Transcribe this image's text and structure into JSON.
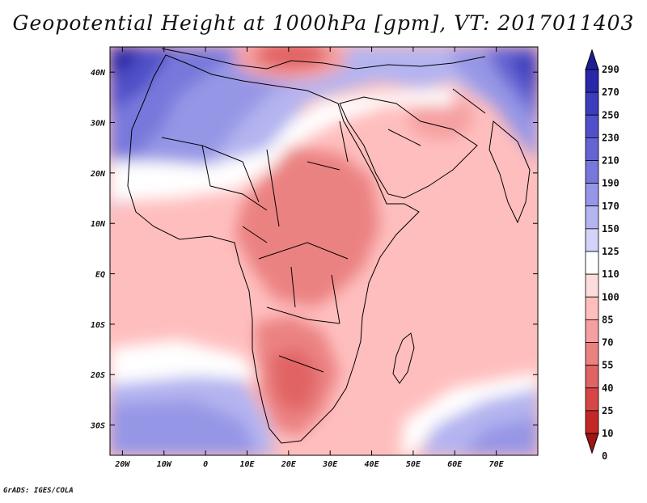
{
  "title": "Geopotential Height at 1000hPa [gpm], VT: 2017011403",
  "footer": "GrADS: IGES/COLA",
  "map": {
    "lon_range": [
      -23,
      80
    ],
    "lat_range": [
      -36,
      45
    ],
    "lat_ticks": [
      {
        "value": 40,
        "label": "40N"
      },
      {
        "value": 30,
        "label": "30N"
      },
      {
        "value": 20,
        "label": "20N"
      },
      {
        "value": 10,
        "label": "10N"
      },
      {
        "value": 0,
        "label": "EQ"
      },
      {
        "value": -10,
        "label": "10S"
      },
      {
        "value": -20,
        "label": "20S"
      },
      {
        "value": -30,
        "label": "30S"
      }
    ],
    "lon_ticks": [
      {
        "value": -20,
        "label": "20W"
      },
      {
        "value": -10,
        "label": "10W"
      },
      {
        "value": 0,
        "label": "0"
      },
      {
        "value": 10,
        "label": "10E"
      },
      {
        "value": 20,
        "label": "20E"
      },
      {
        "value": 30,
        "label": "30E"
      },
      {
        "value": 40,
        "label": "40E"
      },
      {
        "value": 50,
        "label": "50E"
      },
      {
        "value": 60,
        "label": "60E"
      },
      {
        "value": 70,
        "label": "70E"
      }
    ]
  },
  "colorbar": {
    "levels": [
      "290",
      "270",
      "250",
      "230",
      "210",
      "190",
      "170",
      "150",
      "125",
      "110",
      "100",
      "85",
      "70",
      "55",
      "40",
      "25",
      "10",
      "0"
    ],
    "colors": [
      "#1e1e96",
      "#2828a8",
      "#3c3cbc",
      "#5050c8",
      "#6464d2",
      "#7878dc",
      "#9696e6",
      "#b4b4f0",
      "#d2d2fa",
      "#ffffff",
      "#ffdcdc",
      "#ffbebe",
      "#f5a0a0",
      "#eb8282",
      "#e16464",
      "#d74646",
      "#c32828",
      "#a01414"
    ]
  }
}
